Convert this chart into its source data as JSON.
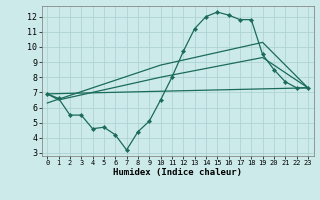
{
  "xlabel": "Humidex (Indice chaleur)",
  "bg_color": "#cdeaea",
  "grid_color": "#afd4d4",
  "line_color": "#1a6b5a",
  "xlim": [
    -0.5,
    23.5
  ],
  "ylim": [
    2.8,
    12.7
  ],
  "xticks": [
    0,
    1,
    2,
    3,
    4,
    5,
    6,
    7,
    8,
    9,
    10,
    11,
    12,
    13,
    14,
    15,
    16,
    17,
    18,
    19,
    20,
    21,
    22,
    23
  ],
  "yticks": [
    3,
    4,
    5,
    6,
    7,
    8,
    9,
    10,
    11,
    12
  ],
  "series": [
    {
      "x": [
        0,
        1,
        2,
        3,
        4,
        5,
        6,
        7,
        8,
        9,
        10,
        11,
        12,
        13,
        14,
        15,
        16,
        17,
        18,
        19,
        20,
        21,
        22,
        23
      ],
      "y": [
        6.9,
        6.6,
        5.5,
        5.5,
        4.6,
        4.7,
        4.2,
        3.2,
        4.4,
        5.1,
        6.5,
        8.0,
        9.7,
        11.2,
        12.0,
        12.3,
        12.1,
        11.8,
        11.8,
        9.5,
        8.5,
        7.7,
        7.3,
        7.3
      ],
      "marker": true
    },
    {
      "x": [
        0,
        1,
        10,
        19,
        23
      ],
      "y": [
        6.9,
        6.5,
        8.0,
        9.3,
        7.3
      ],
      "marker": false
    },
    {
      "x": [
        0,
        23
      ],
      "y": [
        6.9,
        7.3
      ],
      "marker": false
    },
    {
      "x": [
        0,
        10,
        19,
        23
      ],
      "y": [
        6.3,
        8.8,
        10.3,
        7.3
      ],
      "marker": false
    }
  ]
}
